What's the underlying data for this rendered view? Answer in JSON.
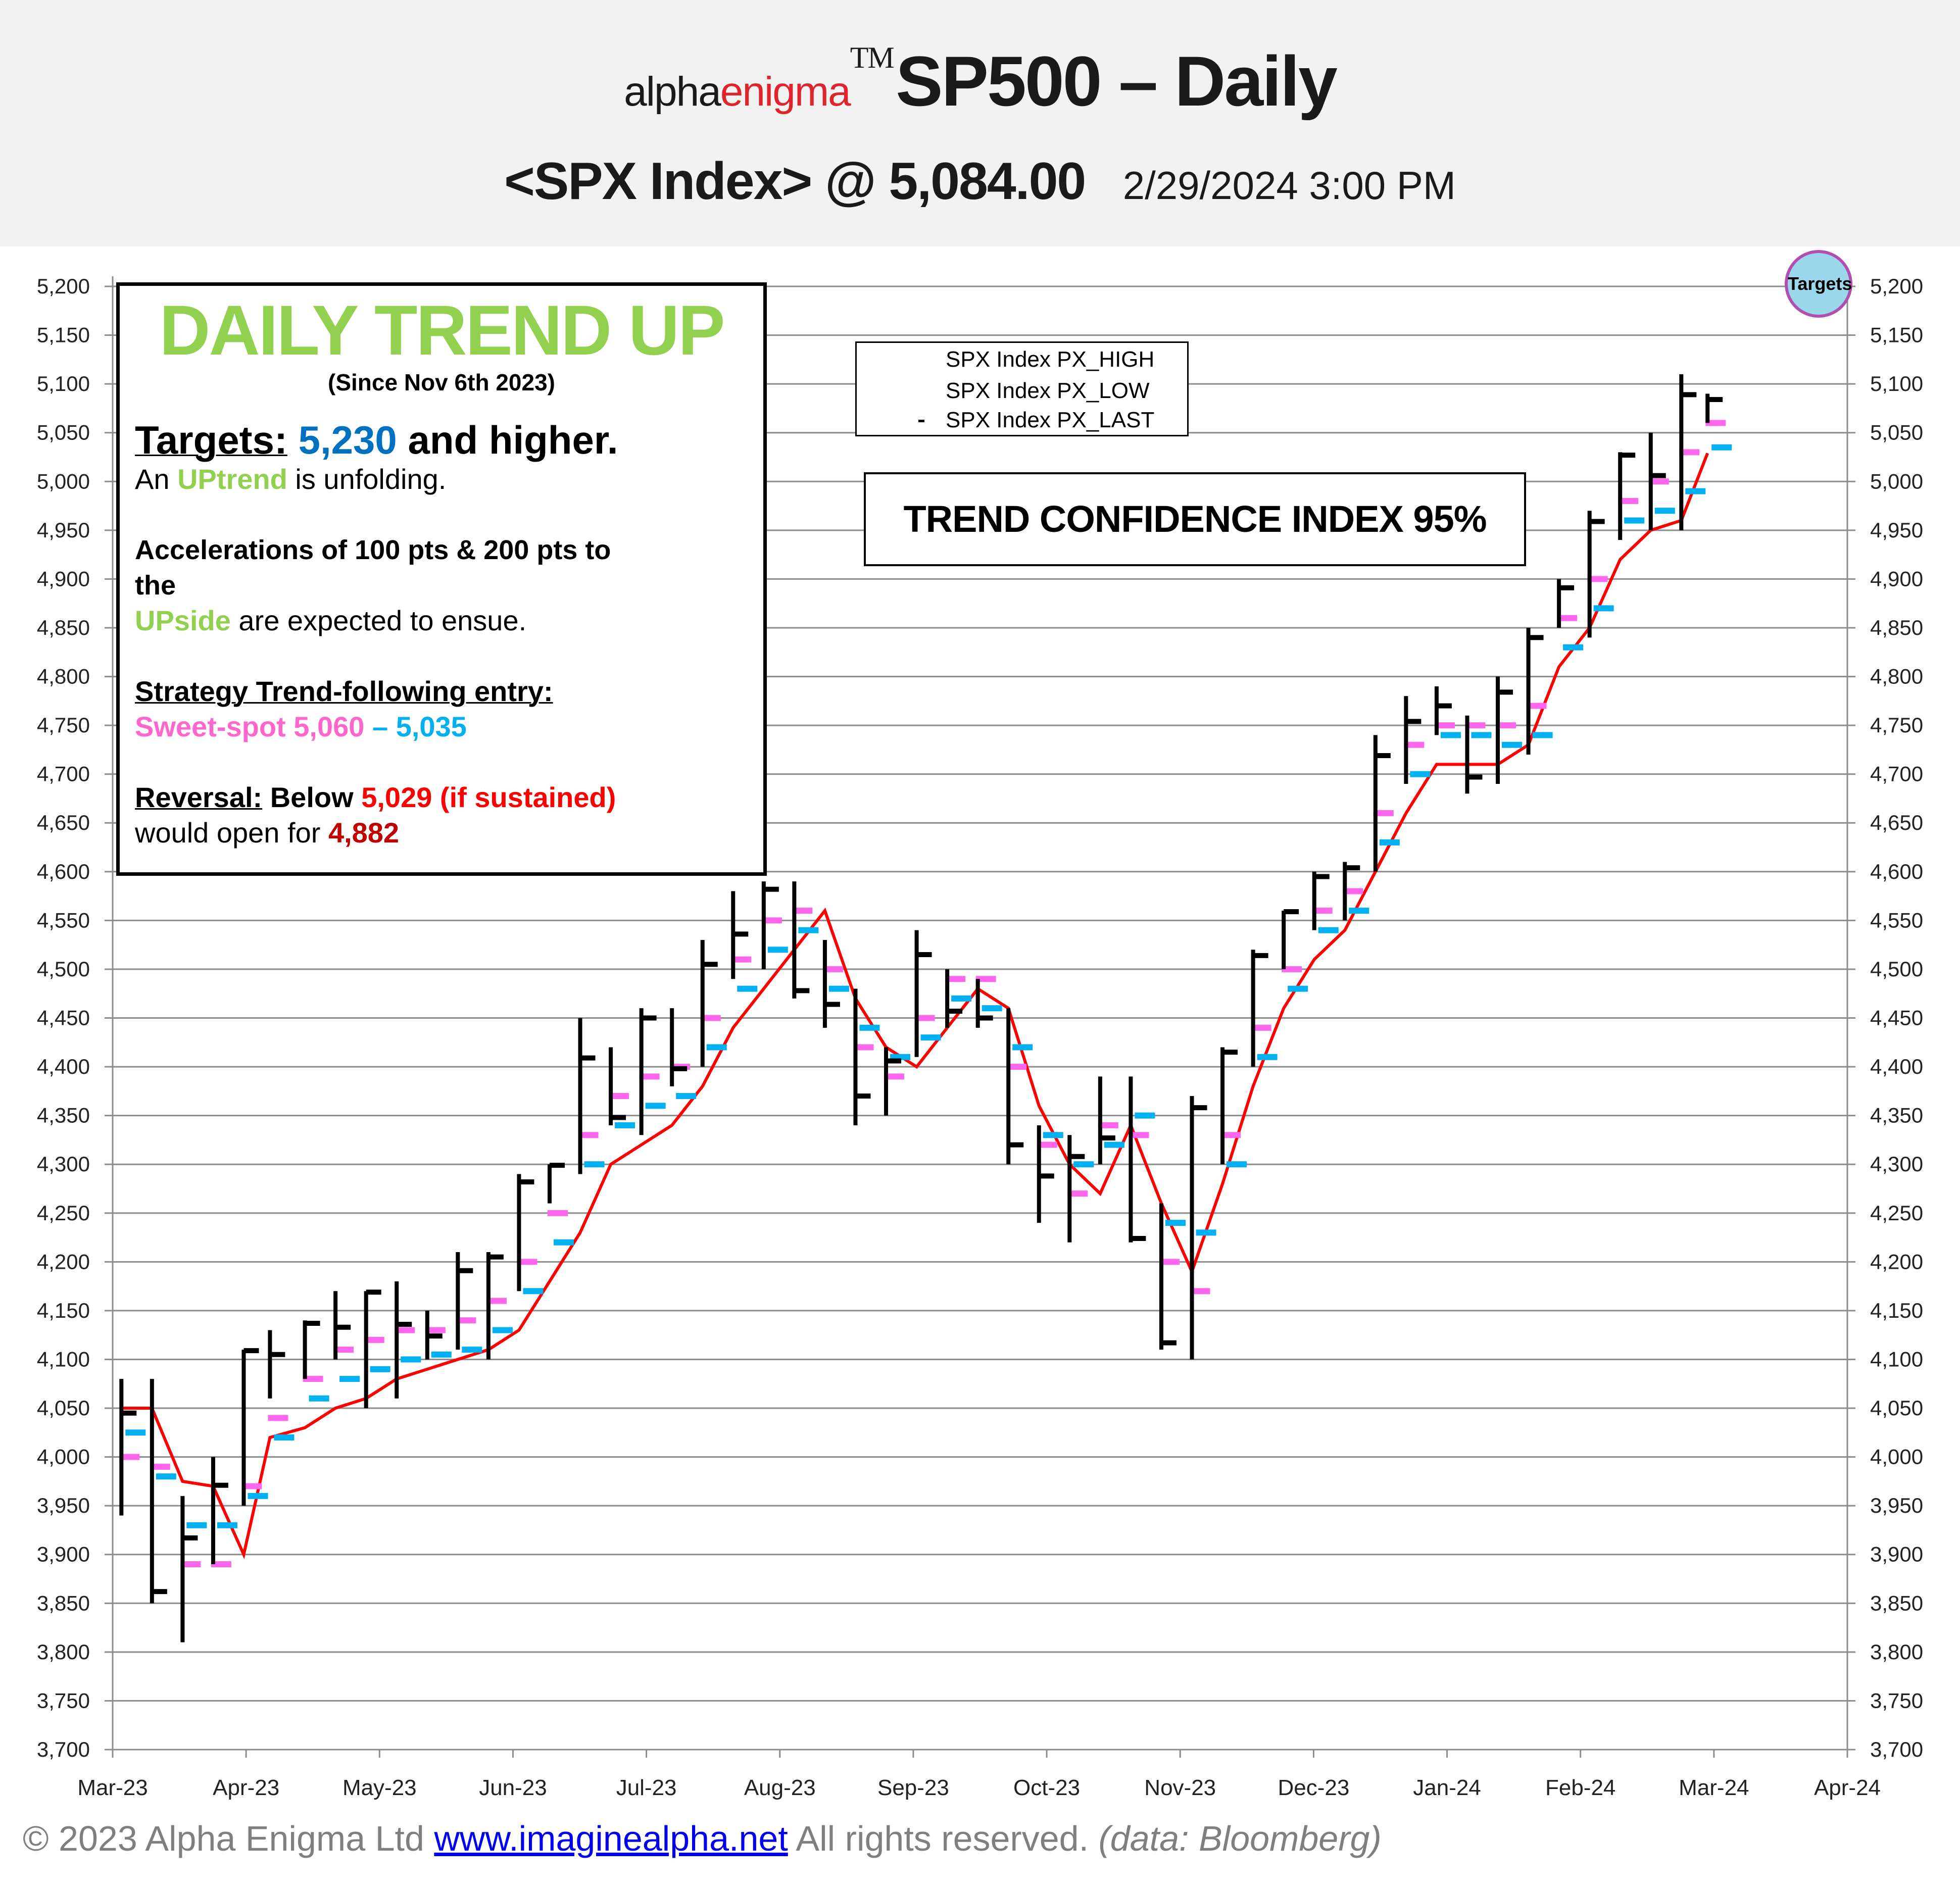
{
  "header": {
    "brand_a": "alpha",
    "brand_b": "enigma",
    "tm": "TM",
    "title": "SP500 – Daily",
    "ticker_price": "<SPX Index> @ 5,084.00",
    "datetime": "2/29/2024 3:00 PM"
  },
  "textbox": {
    "title": "DAILY TREND UP",
    "since": "(Since Nov 6th 2023)",
    "targets_label": "Targets:",
    "targets_value": "5,230",
    "targets_rest": "and higher.",
    "uptrend_pre": "An",
    "uptrend_word": "UPtrend",
    "uptrend_post": "is unfolding.",
    "accel_line1": "Accelerations of 100 pts & 200 pts to",
    "accel_line2": "the",
    "upside_word": "UPside",
    "upside_post": "are expected to ensue.",
    "strategy_label": "Strategy Trend-following entry:",
    "sweet_label": "Sweet-spot 5,060",
    "sweet_dash": "–",
    "sweet_low": "5,035",
    "reversal_label": "Reversal:",
    "reversal_below": "Below",
    "reversal_value": "5,029 (if sustained)",
    "open_pre": "would open for",
    "open_value": "4,882"
  },
  "legend": {
    "items": [
      "SPX Index PX_HIGH",
      "SPX Index PX_LOW",
      "SPX Index PX_LAST"
    ]
  },
  "trend_confidence": "TREND CONFIDENCE INDEX 95%",
  "targets_badge": "Targets",
  "footer": {
    "copyright": "© 2023 Alpha Enigma Ltd",
    "link": "www.imaginealpha.net",
    "rights": "All rights reserved.",
    "source": "(data: Bloomberg)"
  },
  "colors": {
    "price": "#000000",
    "sweet_spot_upper": "#ff66ee",
    "sweet_spot_lower": "#00b0f0",
    "reversal_line": "#ff0000",
    "grid": "#8c8c8c"
  },
  "chart_data": {
    "type": "ohlc",
    "ylim": [
      3700,
      5200
    ],
    "yticks": [
      3700,
      3750,
      3800,
      3850,
      3900,
      3950,
      4000,
      4050,
      4100,
      4150,
      4200,
      4250,
      4300,
      4350,
      4400,
      4450,
      4500,
      4550,
      4600,
      4650,
      4700,
      4750,
      4800,
      4850,
      4900,
      4950,
      5000,
      5050,
      5100,
      5150,
      5200
    ],
    "xlim": [
      "2023-03-01",
      "2024-04-01"
    ],
    "xtick_labels": [
      "Mar-23",
      "Apr-23",
      "May-23",
      "Jun-23",
      "Jul-23",
      "Aug-23",
      "Sep-23",
      "Oct-23",
      "Nov-23",
      "Dec-23",
      "Jan-24",
      "Feb-24",
      "Mar-24",
      "Apr-24"
    ],
    "grid": "horizontal",
    "fields": [
      "date",
      "high",
      "low",
      "last",
      "sweet_upper",
      "sweet_lower",
      "reversal"
    ],
    "points": [
      [
        "2023-03-03",
        4080,
        3940,
        4045,
        4000,
        4025,
        4050
      ],
      [
        "2023-03-10",
        4080,
        3850,
        3862,
        3990,
        3980,
        4050
      ],
      [
        "2023-03-17",
        3960,
        3810,
        3917,
        3890,
        3930,
        3975
      ],
      [
        "2023-03-24",
        4000,
        3890,
        3971,
        3890,
        3930,
        3970
      ],
      [
        "2023-03-31",
        4110,
        3950,
        4109,
        3970,
        3960,
        3900
      ],
      [
        "2023-04-06",
        4130,
        4060,
        4105,
        4040,
        4020,
        4020
      ],
      [
        "2023-04-14",
        4140,
        4080,
        4137,
        4080,
        4060,
        4030
      ],
      [
        "2023-04-21",
        4170,
        4100,
        4133,
        4110,
        4080,
        4050
      ],
      [
        "2023-04-28",
        4170,
        4050,
        4169,
        4120,
        4090,
        4060
      ],
      [
        "2023-05-05",
        4180,
        4060,
        4136,
        4130,
        4100,
        4080
      ],
      [
        "2023-05-12",
        4150,
        4100,
        4124,
        4130,
        4105,
        4090
      ],
      [
        "2023-05-19",
        4210,
        4110,
        4191,
        4140,
        4110,
        4100
      ],
      [
        "2023-05-26",
        4210,
        4100,
        4205,
        4160,
        4130,
        4110
      ],
      [
        "2023-06-02",
        4290,
        4170,
        4282,
        4200,
        4170,
        4130
      ],
      [
        "2023-06-09",
        4300,
        4260,
        4299,
        4250,
        4220,
        4180
      ],
      [
        "2023-06-16",
        4450,
        4290,
        4409,
        4330,
        4300,
        4230
      ],
      [
        "2023-06-23",
        4420,
        4340,
        4348,
        4370,
        4340,
        4300
      ],
      [
        "2023-06-30",
        4460,
        4330,
        4450,
        4390,
        4360,
        4320
      ],
      [
        "2023-07-07",
        4460,
        4380,
        4398,
        4400,
        4370,
        4340
      ],
      [
        "2023-07-14",
        4530,
        4400,
        4505,
        4450,
        4420,
        4380
      ],
      [
        "2023-07-21",
        4580,
        4490,
        4536,
        4510,
        4480,
        4440
      ],
      [
        "2023-07-28",
        4590,
        4500,
        4582,
        4550,
        4520,
        4480
      ],
      [
        "2023-08-04",
        4590,
        4470,
        4478,
        4560,
        4540,
        4520
      ],
      [
        "2023-08-11",
        4530,
        4440,
        4464,
        4500,
        4480,
        4560
      ],
      [
        "2023-08-18",
        4480,
        4340,
        4370,
        4420,
        4440,
        4470
      ],
      [
        "2023-08-25",
        4420,
        4350,
        4406,
        4390,
        4410,
        4420
      ],
      [
        "2023-09-01",
        4540,
        4410,
        4515,
        4450,
        4430,
        4400
      ],
      [
        "2023-09-08",
        4500,
        4440,
        4457,
        4490,
        4470,
        4440
      ],
      [
        "2023-09-15",
        4490,
        4440,
        4450,
        4490,
        4460,
        4480
      ],
      [
        "2023-09-22",
        4460,
        4300,
        4320,
        4400,
        4420,
        4460
      ],
      [
        "2023-09-29",
        4340,
        4240,
        4288,
        4320,
        4330,
        4360
      ],
      [
        "2023-10-06",
        4330,
        4220,
        4308,
        4270,
        4300,
        4300
      ],
      [
        "2023-10-13",
        4390,
        4300,
        4327,
        4340,
        4320,
        4270
      ],
      [
        "2023-10-20",
        4390,
        4220,
        4224,
        4330,
        4350,
        4340
      ],
      [
        "2023-10-27",
        4260,
        4110,
        4117,
        4200,
        4240,
        4260
      ],
      [
        "2023-11-03",
        4370,
        4100,
        4358,
        4170,
        4230,
        4190
      ],
      [
        "2023-11-10",
        4420,
        4300,
        4415,
        4330,
        4300,
        4280
      ],
      [
        "2023-11-17",
        4520,
        4400,
        4514,
        4440,
        4410,
        4380
      ],
      [
        "2023-11-24",
        4560,
        4500,
        4559,
        4500,
        4480,
        4460
      ],
      [
        "2023-12-01",
        4600,
        4540,
        4595,
        4560,
        4540,
        4510
      ],
      [
        "2023-12-08",
        4610,
        4550,
        4604,
        4580,
        4560,
        4540
      ],
      [
        "2023-12-15",
        4740,
        4600,
        4719,
        4660,
        4630,
        4600
      ],
      [
        "2023-12-22",
        4780,
        4690,
        4754,
        4730,
        4700,
        4660
      ],
      [
        "2023-12-29",
        4790,
        4740,
        4770,
        4750,
        4740,
        4710
      ],
      [
        "2024-01-05",
        4760,
        4680,
        4697,
        4750,
        4740,
        4710
      ],
      [
        "2024-01-12",
        4800,
        4690,
        4784,
        4750,
        4730,
        4710
      ],
      [
        "2024-01-19",
        4850,
        4720,
        4840,
        4770,
        4740,
        4730
      ],
      [
        "2024-01-26",
        4900,
        4850,
        4891,
        4860,
        4830,
        4810
      ],
      [
        "2024-02-02",
        4970,
        4840,
        4959,
        4900,
        4870,
        4850
      ],
      [
        "2024-02-09",
        5030,
        4940,
        5027,
        4980,
        4960,
        4920
      ],
      [
        "2024-02-16",
        5050,
        4950,
        5006,
        5000,
        4970,
        4950
      ],
      [
        "2024-02-23",
        5110,
        4950,
        5089,
        5030,
        4990,
        4960
      ],
      [
        "2024-02-29",
        5090,
        5060,
        5084,
        5060,
        5035,
        5029
      ]
    ]
  }
}
